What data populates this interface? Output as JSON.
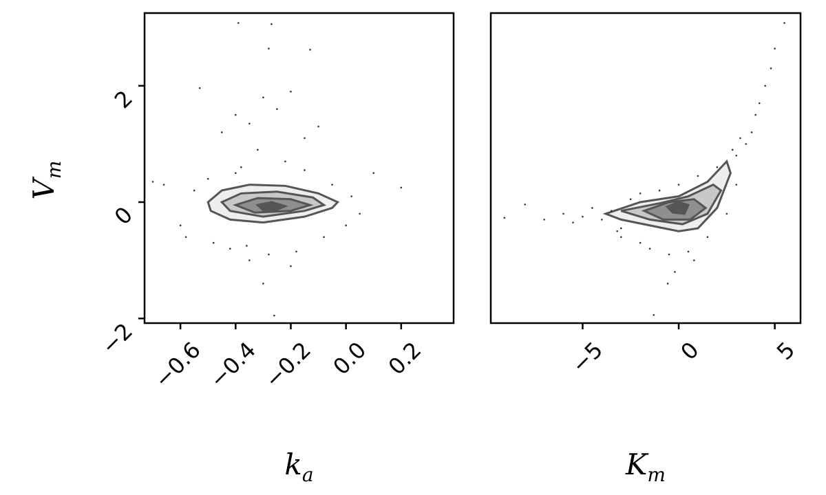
{
  "chart_data": [
    {
      "type": "scatter",
      "xlabel": "k",
      "xlabel_sub": "a",
      "ylabel": "V",
      "ylabel_sub": "m",
      "xlim": [
        -0.73,
        0.39
      ],
      "ylim": [
        -2.08,
        3.25
      ],
      "xticks": [
        {
          "value": -0.6,
          "label": "−0.6"
        },
        {
          "value": -0.4,
          "label": "−0.4"
        },
        {
          "value": -0.2,
          "label": "−0.2"
        },
        {
          "value": 0,
          "label": "0.0"
        },
        0.2
      ],
      "yticks": [
        {
          "value": -2,
          "label": "−2"
        },
        0,
        2
      ],
      "color": "#333333",
      "x": [
        -0.39,
        -0.27,
        -0.28,
        -0.13,
        -0.66,
        -0.53,
        -0.45,
        -0.4,
        -0.35,
        -0.3,
        -0.25,
        -0.2,
        -0.15,
        -0.1,
        -0.32,
        -0.22,
        -0.38,
        -0.5,
        -0.55,
        -0.6,
        -0.05,
        0.02,
        0.1,
        0.2,
        -0.7,
        -0.58,
        -0.48,
        -0.42,
        -0.36,
        -0.28,
        -0.18,
        -0.08,
        0.0,
        -0.3,
        -0.2,
        -0.35,
        -0.26,
        -0.4,
        -0.15,
        0.05
      ],
      "y": [
        3.08,
        3.06,
        2.64,
        2.62,
        0.3,
        1.96,
        1.2,
        1.5,
        1.35,
        1.8,
        1.6,
        1.9,
        1.1,
        1.3,
        0.9,
        0.7,
        0.6,
        0.4,
        0.2,
        -0.4,
        0.3,
        0.1,
        0.5,
        0.25,
        0.35,
        -0.6,
        -0.7,
        -0.8,
        -0.75,
        -0.9,
        -0.85,
        -0.6,
        -0.4,
        -1.4,
        -1.1,
        -1.0,
        -1.95,
        0.5,
        0.55,
        -0.2
      ],
      "contours": [
        {
          "x": [
            -0.5,
            -0.45,
            -0.35,
            -0.22,
            -0.1,
            -0.03,
            -0.05,
            -0.15,
            -0.3,
            -0.42,
            -0.49
          ],
          "y": [
            0.0,
            0.2,
            0.3,
            0.28,
            0.15,
            0.0,
            -0.1,
            -0.25,
            -0.35,
            -0.3,
            -0.15
          ]
        },
        {
          "x": [
            -0.45,
            -0.38,
            -0.25,
            -0.12,
            -0.08,
            -0.15,
            -0.3,
            -0.42
          ],
          "y": [
            0.0,
            0.15,
            0.18,
            0.08,
            -0.05,
            -0.15,
            -0.25,
            -0.15
          ]
        },
        {
          "x": [
            -0.4,
            -0.32,
            -0.2,
            -0.13,
            -0.2,
            -0.33
          ],
          "y": [
            -0.05,
            0.07,
            0.05,
            -0.05,
            -0.15,
            -0.18
          ]
        },
        {
          "x": [
            -0.32,
            -0.27,
            -0.22,
            -0.25,
            -0.3
          ],
          "y": [
            -0.05,
            0.0,
            -0.07,
            -0.13,
            -0.14
          ]
        }
      ]
    },
    {
      "type": "scatter",
      "xlabel": "K",
      "xlabel_sub": "m",
      "xlim": [
        -9.78,
        6.34
      ],
      "ylim": [
        -2.08,
        3.25
      ],
      "xticks": [
        {
          "value": -5,
          "label": "−5"
        },
        0,
        5
      ],
      "color": "#333333",
      "x": [
        5.5,
        5.0,
        4.0,
        3.5,
        3.0,
        4.5,
        4.2,
        3.8,
        3.2,
        2.8,
        4.8,
        -8.0,
        -9.07,
        -1.3,
        -0.57,
        -7.0,
        -6.0,
        -5.5,
        -5.0,
        -4.5,
        -4.0,
        -3.5,
        -3.0,
        -2.5,
        -2.0,
        -1.0,
        0.0,
        1.0,
        2.0,
        -3.0,
        -2.0,
        -0.5,
        0.5,
        1.5,
        3.0,
        -1.5,
        -3.2,
        2.5,
        0.8,
        -0.2
      ],
      "y": [
        3.08,
        2.64,
        1.5,
        1.0,
        0.8,
        2.0,
        1.7,
        1.2,
        1.1,
        0.9,
        2.3,
        -0.04,
        -0.27,
        -1.94,
        -1.4,
        -0.3,
        -0.2,
        -0.35,
        -0.25,
        -0.1,
        -0.3,
        -0.15,
        -0.45,
        0.05,
        0.15,
        0.2,
        0.3,
        0.45,
        0.6,
        -0.6,
        -0.7,
        -0.9,
        -0.85,
        -0.6,
        0.3,
        -0.8,
        -0.5,
        -0.2,
        -1.0,
        -1.2
      ],
      "contours": [
        {
          "x": [
            -3.8,
            -2,
            0,
            1.5,
            2.5,
            2.7,
            2.0,
            1.0,
            0,
            -1.5,
            -3
          ],
          "y": [
            -0.2,
            0.0,
            0.1,
            0.35,
            0.7,
            0.5,
            -0.1,
            -0.45,
            -0.5,
            -0.4,
            -0.3
          ]
        },
        {
          "x": [
            -3,
            -1,
            0.5,
            1.8,
            2.2,
            1.5,
            0.2,
            -1.5
          ],
          "y": [
            -0.15,
            -0.02,
            0.1,
            0.3,
            0.2,
            -0.2,
            -0.38,
            -0.3
          ]
        },
        {
          "x": [
            -1.8,
            -0.5,
            0.8,
            1.4,
            0.6,
            -0.8
          ],
          "y": [
            -0.15,
            0.0,
            0.05,
            -0.1,
            -0.3,
            -0.3
          ]
        },
        {
          "x": [
            -0.6,
            0,
            0.5,
            0.3,
            -0.3
          ],
          "y": [
            -0.08,
            0.0,
            -0.05,
            -0.2,
            -0.18
          ]
        }
      ]
    }
  ]
}
